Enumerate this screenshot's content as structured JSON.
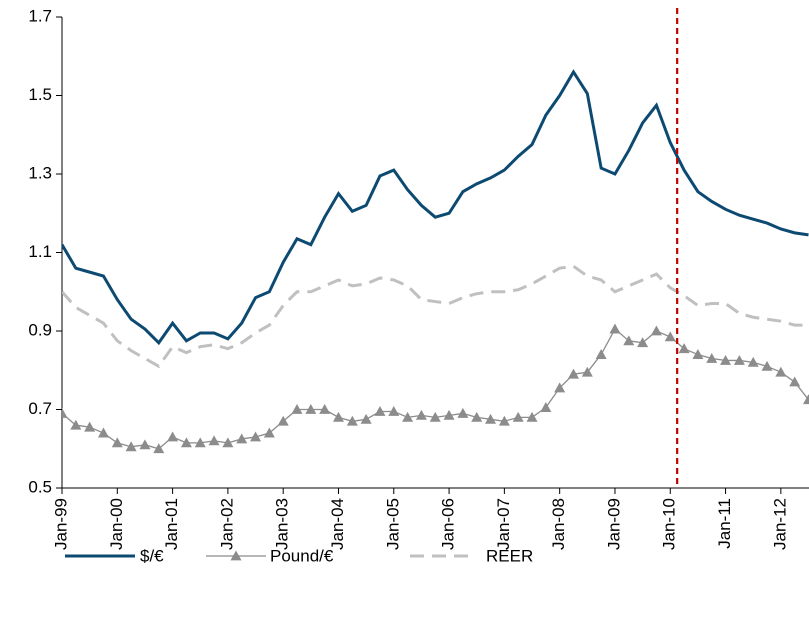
{
  "chart_data": {
    "type": "line",
    "x": [
      1999,
      1999.25,
      1999.5,
      1999.75,
      2000,
      2000.25,
      2000.5,
      2000.75,
      2001,
      2001.25,
      2001.5,
      2001.75,
      2002,
      2002.25,
      2002.5,
      2002.75,
      2003,
      2003.25,
      2003.5,
      2003.75,
      2004,
      2004.25,
      2004.5,
      2004.75,
      2005,
      2005.25,
      2005.5,
      2005.75,
      2006,
      2006.25,
      2006.5,
      2006.75,
      2007,
      2007.25,
      2007.5,
      2007.75,
      2008,
      2008.25,
      2008.5,
      2008.75,
      2009,
      2009.25,
      2009.5,
      2009.75,
      2010,
      2010.25,
      2010.5,
      2010.75,
      2011,
      2011.25,
      2011.5,
      2011.75,
      2012,
      2012.25,
      2012.5
    ],
    "series": [
      {
        "name": "$/€",
        "color": "#0d4a72",
        "values": [
          1.12,
          1.06,
          1.05,
          1.04,
          0.98,
          0.93,
          0.905,
          0.87,
          0.92,
          0.875,
          0.895,
          0.895,
          0.88,
          0.92,
          0.985,
          1.0,
          1.075,
          1.135,
          1.12,
          1.19,
          1.25,
          1.205,
          1.22,
          1.295,
          1.31,
          1.26,
          1.22,
          1.19,
          1.2,
          1.255,
          1.275,
          1.29,
          1.31,
          1.345,
          1.375,
          1.45,
          1.5,
          1.56,
          1.505,
          1.315,
          1.3,
          1.36,
          1.43,
          1.475,
          1.38,
          1.31,
          1.255,
          1.23,
          1.21,
          1.195,
          1.185,
          1.175,
          1.16,
          1.15,
          1.145
        ]
      },
      {
        "name": "Pound/€",
        "color": "#8c8c8c",
        "marker": "triangle",
        "values": [
          0.69,
          0.66,
          0.655,
          0.64,
          0.615,
          0.605,
          0.61,
          0.6,
          0.63,
          0.615,
          0.615,
          0.62,
          0.615,
          0.625,
          0.63,
          0.64,
          0.67,
          0.7,
          0.7,
          0.7,
          0.68,
          0.67,
          0.675,
          0.695,
          0.695,
          0.68,
          0.685,
          0.68,
          0.685,
          0.69,
          0.68,
          0.675,
          0.67,
          0.68,
          0.68,
          0.705,
          0.755,
          0.79,
          0.795,
          0.84,
          0.905,
          0.875,
          0.87,
          0.9,
          0.885,
          0.855,
          0.84,
          0.83,
          0.825,
          0.825,
          0.82,
          0.81,
          0.795,
          0.77,
          0.725
        ]
      },
      {
        "name": "REER",
        "color": "#c0c0c0",
        "dash": true,
        "values": [
          1.0,
          0.96,
          0.94,
          0.92,
          0.875,
          0.85,
          0.83,
          0.81,
          0.86,
          0.845,
          0.86,
          0.865,
          0.855,
          0.87,
          0.895,
          0.915,
          0.965,
          1.0,
          1.0,
          1.015,
          1.03,
          1.015,
          1.02,
          1.035,
          1.03,
          1.015,
          0.98,
          0.975,
          0.97,
          0.985,
          0.995,
          1.0,
          1.0,
          1.005,
          1.02,
          1.04,
          1.06,
          1.065,
          1.04,
          1.03,
          1.0,
          1.015,
          1.03,
          1.045,
          1.01,
          0.99,
          0.965,
          0.97,
          0.97,
          0.945,
          0.935,
          0.93,
          0.925,
          0.915,
          0.915
        ]
      }
    ],
    "xlim": [
      1999,
      2012.5
    ],
    "xticks": [
      {
        "value": 1999,
        "label": "Jan-99"
      },
      {
        "value": 2000,
        "label": "Jan-00"
      },
      {
        "value": 2001,
        "label": "Jan-01"
      },
      {
        "value": 2002,
        "label": "Jan-02"
      },
      {
        "value": 2003,
        "label": "Jan-03"
      },
      {
        "value": 2004,
        "label": "Jan-04"
      },
      {
        "value": 2005,
        "label": "Jan-05"
      },
      {
        "value": 2006,
        "label": "Jan-06"
      },
      {
        "value": 2007,
        "label": "Jan-07"
      },
      {
        "value": 2008,
        "label": "Jan-08"
      },
      {
        "value": 2009,
        "label": "Jan-09"
      },
      {
        "value": 2010,
        "label": "Jan-10"
      },
      {
        "value": 2011,
        "label": "Jan-11"
      },
      {
        "value": 2012,
        "label": "Jan-12"
      }
    ],
    "ylim": [
      0.5,
      1.7
    ],
    "yticks": [
      0.5,
      0.7,
      0.9,
      1.1,
      1.3,
      1.5,
      1.7
    ],
    "vline": {
      "x": 2010.125,
      "color": "#c00000"
    },
    "legend": "bottom"
  }
}
